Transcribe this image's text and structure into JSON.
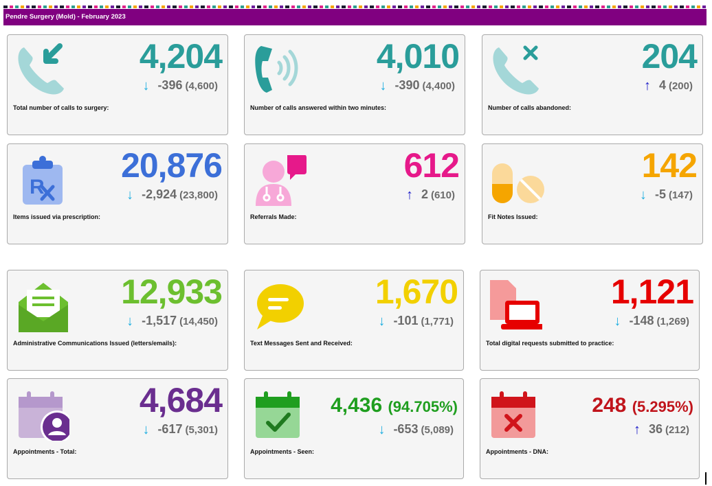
{
  "header": {
    "title": "Pendre Surgery (Mold) - February 2023"
  },
  "colors": {
    "header_bg": "#800080",
    "arrow_down": "#1eaee0",
    "arrow_up": "#1c1cc8"
  },
  "cards": [
    {
      "id": "total-calls",
      "value": "4,204",
      "change": "-396",
      "previous": "(4,600)",
      "direction": "down",
      "label": "Total number of calls to surgery:",
      "color": "#2a9d9a",
      "icon": "phone-incoming-icon"
    },
    {
      "id": "calls-answered",
      "value": "4,010",
      "change": "-390",
      "previous": "(4,400)",
      "direction": "down",
      "label": "Number of calls answered within two minutes:",
      "color": "#2a9d9a",
      "icon": "phone-ringing-icon"
    },
    {
      "id": "calls-abandoned",
      "value": "204",
      "change": "4",
      "previous": "(200)",
      "direction": "up",
      "label": "Number of calls abandoned:",
      "color": "#2a9d9a",
      "icon": "phone-missed-icon"
    },
    {
      "id": "prescriptions",
      "value": "20,876",
      "change": "-2,924",
      "previous": "(23,800)",
      "direction": "down",
      "label": "Items issued via prescription:",
      "color": "#3c6fd8",
      "icon": "prescription-clipboard-icon"
    },
    {
      "id": "referrals",
      "value": "612",
      "change": "2",
      "previous": "(610)",
      "direction": "up",
      "label": "Referrals Made:",
      "color": "#e6198a",
      "icon": "doctor-speech-icon"
    },
    {
      "id": "fit-notes",
      "value": "142",
      "change": "-5",
      "previous": "(147)",
      "direction": "down",
      "label": "Fit Notes Issued:",
      "color": "#f5a500",
      "icon": "pills-icon"
    },
    {
      "id": "admin-comms",
      "value": "12,933",
      "change": "-1,517",
      "previous": "(14,450)",
      "direction": "down",
      "label": "Administrative Communications Issued (letters/emails):",
      "color": "#6cbf2f",
      "icon": "open-envelope-icon"
    },
    {
      "id": "text-messages",
      "value": "1,670",
      "change": "-101",
      "previous": "(1,771)",
      "direction": "down",
      "label": "Text Messages Sent and Received:",
      "color": "#f2d000",
      "icon": "chat-bubble-icon"
    },
    {
      "id": "digital-requests",
      "value": "1,121",
      "change": "-148",
      "previous": "(1,269)",
      "direction": "down",
      "label": "Total digital requests submitted to practice:",
      "color": "#e60000",
      "icon": "laptop-document-icon"
    },
    {
      "id": "appointments-total",
      "value": "4,684",
      "change": "-617",
      "previous": "(5,301)",
      "direction": "down",
      "label": "Appointments - Total:",
      "color": "#6a2e8f",
      "icon": "calendar-person-icon"
    },
    {
      "id": "appointments-seen",
      "value": "4,436",
      "percent": "(94.705%)",
      "change": "-653",
      "previous": "(5,089)",
      "direction": "down",
      "label": "Appointments - Seen:",
      "color": "#1f9e1f",
      "icon": "calendar-check-icon"
    },
    {
      "id": "appointments-dna",
      "value": "248",
      "percent": "(5.295%)",
      "change": "36",
      "previous": "(212)",
      "direction": "up",
      "label": "Appointments - DNA:",
      "color": "#c0141b",
      "icon": "calendar-cross-icon"
    }
  ]
}
